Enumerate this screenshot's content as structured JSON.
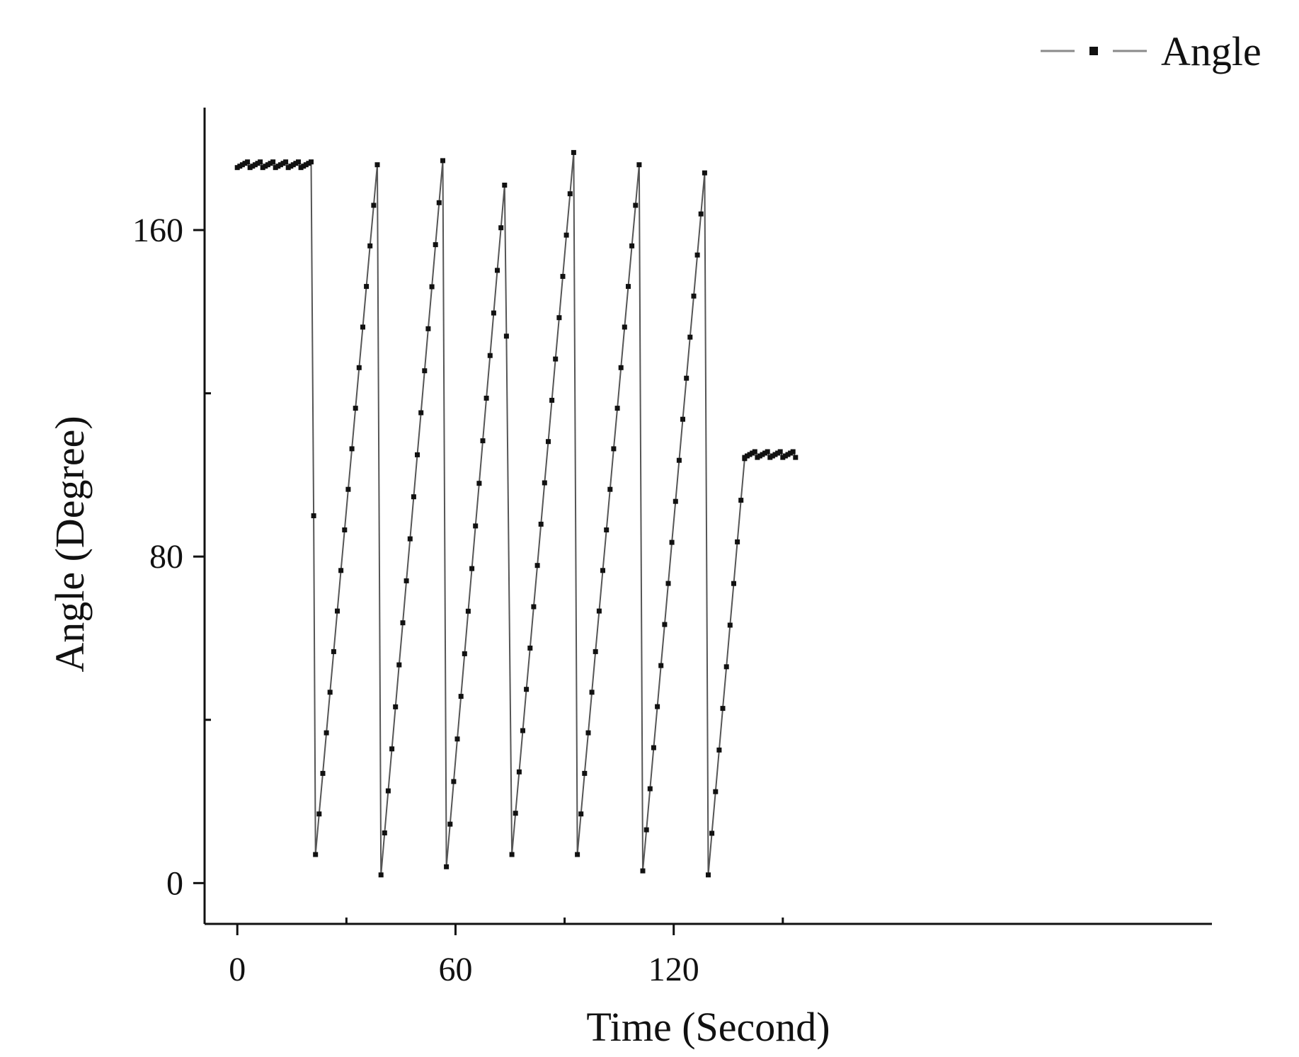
{
  "chart_data": {
    "type": "line",
    "title": "",
    "xlabel": "Time (Second)",
    "ylabel": "Angle (Degree)",
    "xlim": [
      -9,
      268
    ],
    "ylim": [
      -10,
      190
    ],
    "x_ticks": [
      0,
      60,
      120
    ],
    "x_minor_ticks": [
      30,
      90,
      150
    ],
    "y_ticks": [
      0,
      80,
      160
    ],
    "y_minor_ticks": [
      40,
      120
    ],
    "grid": false,
    "legend": {
      "position": "top-right",
      "entries": [
        "Angle"
      ]
    },
    "colors": {
      "line": "#555555",
      "marker": "#111111"
    },
    "series": [
      {
        "name": "Angle",
        "segments": [
          {
            "type": "plateau",
            "x_start": 0,
            "x_end": 20.5,
            "value": 176,
            "step": 0.7
          },
          {
            "type": "drop",
            "x_start": 20.5,
            "x_end": 21.5,
            "value": 90
          },
          {
            "type": "ramp",
            "x_start": 21.5,
            "x_end": 38.5,
            "start": 7,
            "end": 176
          },
          {
            "type": "ramp",
            "x_start": 39.5,
            "x_end": 56.5,
            "start": 2,
            "end": 177
          },
          {
            "type": "ramp",
            "x_start": 57.5,
            "x_end": 73.5,
            "start": 4,
            "end": 171
          },
          {
            "type": "drop",
            "x_start": 73.5,
            "x_end": 74.5,
            "value": 134
          },
          {
            "type": "ramp",
            "x_start": 75.5,
            "x_end": 92.5,
            "start": 7,
            "end": 179
          },
          {
            "type": "ramp",
            "x_start": 93.5,
            "x_end": 110.5,
            "start": 7,
            "end": 176
          },
          {
            "type": "ramp",
            "x_start": 111.5,
            "x_end": 128.5,
            "start": 3,
            "end": 174
          },
          {
            "type": "ramp",
            "x_start": 129.5,
            "x_end": 139.5,
            "start": 2,
            "end": 104
          },
          {
            "type": "plateau",
            "x_start": 139.5,
            "x_end": 154,
            "value": 105,
            "step": 0.7
          }
        ]
      }
    ]
  }
}
